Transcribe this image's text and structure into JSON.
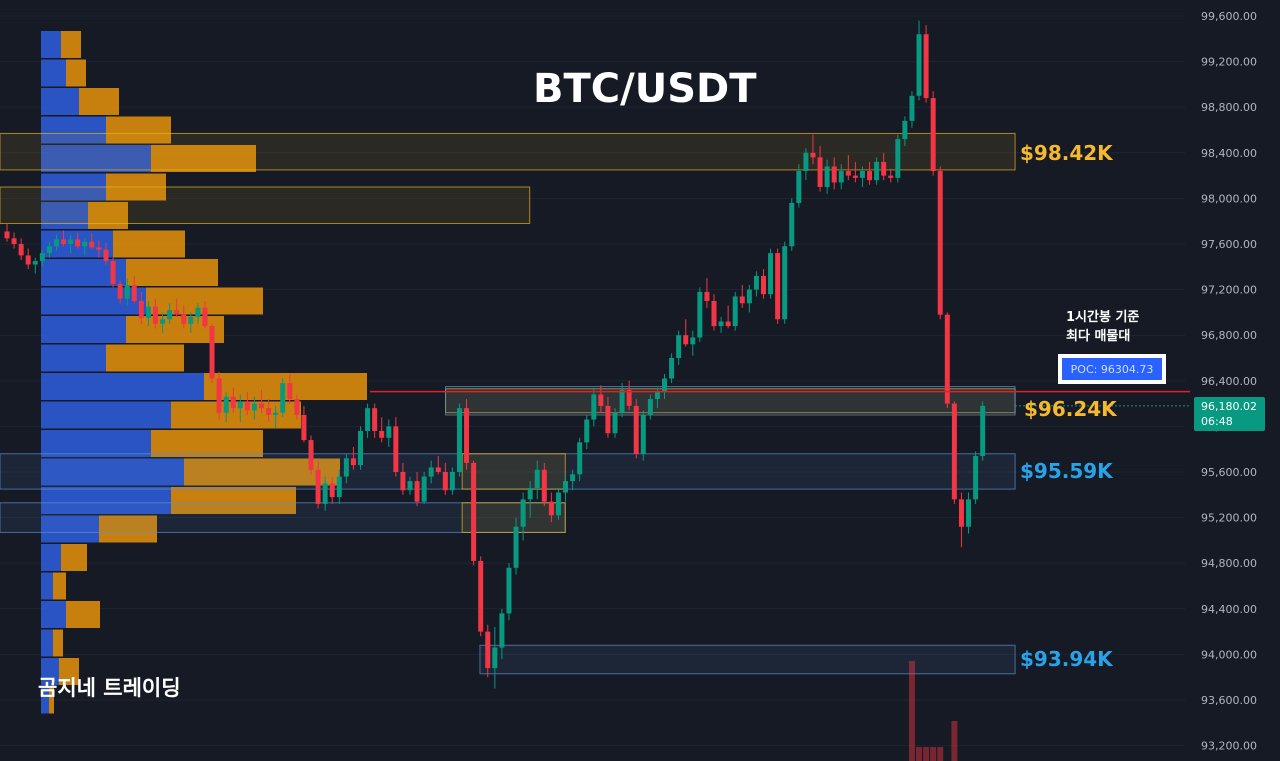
{
  "chart": {
    "title": "BTC/USDT",
    "watermark": "곰지네 트레이딩",
    "note_line1": "1시간봉 기준",
    "note_line2": "최다 매물대",
    "poc_label": "POC: 96304.73",
    "current_price": "96,180.02",
    "countdown": "06:48",
    "levels": [
      {
        "label": "$98.42K",
        "color": "#f5b82e"
      },
      {
        "label": "$96.24K",
        "color": "#f5b82e"
      },
      {
        "label": "$95.59K",
        "color": "#29a3e8"
      },
      {
        "label": "$93.94K",
        "color": "#29a3e8"
      }
    ]
  },
  "chart_data": {
    "type": "candlestick",
    "title": "BTC/USDT",
    "timeframe_note": "1시간봉 기준",
    "y_axis": {
      "ticks": [
        "99,600.00",
        "99,200.00",
        "98,800.00",
        "98,400.00",
        "98,000.00",
        "97,600.00",
        "97,200.00",
        "96,800.00",
        "96,400.00",
        "96,000.00",
        "95,600.00",
        "95,200.00",
        "94,800.00",
        "94,400.00",
        "94,000.00",
        "93,600.00",
        "93,200.00"
      ],
      "ylim": [
        93000,
        99850
      ]
    },
    "poc": 96304.73,
    "current_price": 96180.02,
    "level_lines": [
      98420,
      96240,
      95590,
      93940
    ],
    "zones": [
      {
        "name": "zone-98k-upper",
        "low": 98250,
        "high": 98570,
        "x_start": 0,
        "x_end": 0.795,
        "color": "#e6b422"
      },
      {
        "name": "zone-98k-lower",
        "low": 97780,
        "high": 98100,
        "x_start": 0,
        "x_end": 0.447,
        "color": "#e6b422"
      },
      {
        "name": "zone-96k-poc",
        "low": 96120,
        "high": 96330,
        "x_start": 0.376,
        "x_end": 0.795,
        "color": "#e6b422"
      },
      {
        "name": "zone-96k-blue",
        "low": 96100,
        "high": 96350,
        "x_start": 0.376,
        "x_end": 0.795,
        "color": "#5b8fd0"
      },
      {
        "name": "zone-95k-blue-a",
        "low": 95450,
        "high": 95760,
        "x_start": 0,
        "x_end": 0.795,
        "color": "#5b8fd0"
      },
      {
        "name": "zone-95k-blue-b",
        "low": 95070,
        "high": 95330,
        "x_start": 0,
        "x_end": 0.477,
        "color": "#5b8fd0"
      },
      {
        "name": "zone-95k-yellow",
        "low": 95450,
        "high": 95760,
        "x_start": 0.39,
        "x_end": 0.477,
        "color": "#e6b422"
      },
      {
        "name": "zone-95k-yellow-b",
        "low": 95070,
        "high": 95330,
        "x_start": 0.39,
        "x_end": 0.477,
        "color": "#e6b422"
      },
      {
        "name": "zone-93k-blue",
        "low": 93830,
        "high": 94080,
        "x_start": 0.405,
        "x_end": 0.795,
        "color": "#5b8fd0"
      }
    ],
    "volume_profile": [
      {
        "price": 99350,
        "up": 20,
        "down": 20
      },
      {
        "price": 99100,
        "up": 25,
        "down": 20
      },
      {
        "price": 98850,
        "up": 38,
        "down": 40
      },
      {
        "price": 98600,
        "up": 65,
        "down": 65
      },
      {
        "price": 98350,
        "up": 110,
        "down": 105
      },
      {
        "price": 98100,
        "up": 65,
        "down": 60
      },
      {
        "price": 97850,
        "up": 47,
        "down": 40
      },
      {
        "price": 97600,
        "up": 72,
        "down": 72
      },
      {
        "price": 97350,
        "up": 85,
        "down": 92
      },
      {
        "price": 97100,
        "up": 105,
        "down": 117
      },
      {
        "price": 96850,
        "up": 85,
        "down": 98
      },
      {
        "price": 96600,
        "up": 65,
        "down": 78
      },
      {
        "price": 96350,
        "up": 163,
        "down": 163
      },
      {
        "price": 96100,
        "up": 130,
        "down": 130
      },
      {
        "price": 95850,
        "up": 110,
        "down": 112
      },
      {
        "price": 95600,
        "up": 143,
        "down": 156
      },
      {
        "price": 95350,
        "up": 130,
        "down": 125
      },
      {
        "price": 95100,
        "up": 58,
        "down": 58
      },
      {
        "price": 94850,
        "up": 20,
        "down": 26
      },
      {
        "price": 94600,
        "up": 12,
        "down": 13
      },
      {
        "price": 94350,
        "up": 25,
        "down": 34
      },
      {
        "price": 94100,
        "up": 12,
        "down": 10
      },
      {
        "price": 93850,
        "up": 18,
        "down": 20
      },
      {
        "price": 93600,
        "up": 8,
        "down": 5
      }
    ],
    "candles": [
      [
        97710,
        97780,
        97620,
        97650
      ],
      [
        97650,
        97700,
        97560,
        97600
      ],
      [
        97600,
        97650,
        97460,
        97500
      ],
      [
        97500,
        97560,
        97380,
        97420
      ],
      [
        97420,
        97480,
        97340,
        97450
      ],
      [
        97450,
        97550,
        97400,
        97520
      ],
      [
        97520,
        97620,
        97480,
        97580
      ],
      [
        97580,
        97680,
        97540,
        97640
      ],
      [
        97640,
        97720,
        97580,
        97600
      ],
      [
        97600,
        97680,
        97520,
        97640
      ],
      [
        97640,
        97700,
        97560,
        97580
      ],
      [
        97580,
        97650,
        97500,
        97620
      ],
      [
        97620,
        97690,
        97560,
        97570
      ],
      [
        97570,
        97630,
        97480,
        97550
      ],
      [
        97550,
        97610,
        97420,
        97450
      ],
      [
        97450,
        97480,
        97220,
        97250
      ],
      [
        97250,
        97280,
        97080,
        97120
      ],
      [
        97120,
        97300,
        97060,
        97240
      ],
      [
        97240,
        97320,
        97080,
        97100
      ],
      [
        97100,
        97180,
        96900,
        96950
      ],
      [
        96950,
        97100,
        96880,
        97050
      ],
      [
        97050,
        97120,
        96860,
        96900
      ],
      [
        96900,
        97000,
        96820,
        96940
      ],
      [
        96940,
        97080,
        96900,
        97020
      ],
      [
        97020,
        97120,
        96960,
        96980
      ],
      [
        96980,
        97060,
        96860,
        96900
      ],
      [
        96900,
        97000,
        96820,
        96960
      ],
      [
        96960,
        97080,
        96900,
        97040
      ],
      [
        97040,
        97100,
        96860,
        96880
      ],
      [
        96880,
        96900,
        96380,
        96420
      ],
      [
        96420,
        96480,
        96060,
        96120
      ],
      [
        96120,
        96300,
        96040,
        96260
      ],
      [
        96260,
        96340,
        96120,
        96160
      ],
      [
        96160,
        96280,
        96040,
        96220
      ],
      [
        96220,
        96300,
        96100,
        96140
      ],
      [
        96140,
        96260,
        96060,
        96200
      ],
      [
        96200,
        96320,
        96120,
        96160
      ],
      [
        96160,
        96240,
        96040,
        96100
      ],
      [
        96100,
        96180,
        95980,
        96120
      ],
      [
        96120,
        96420,
        96080,
        96380
      ],
      [
        96380,
        96460,
        96200,
        96240
      ],
      [
        96240,
        96280,
        96060,
        96100
      ],
      [
        96100,
        96180,
        95860,
        95880
      ],
      [
        95880,
        95920,
        95580,
        95620
      ],
      [
        95620,
        95700,
        95280,
        95320
      ],
      [
        95320,
        95560,
        95260,
        95500
      ],
      [
        95500,
        95560,
        95320,
        95380
      ],
      [
        95380,
        95620,
        95320,
        95560
      ],
      [
        95560,
        95760,
        95500,
        95720
      ],
      [
        95720,
        95820,
        95620,
        95660
      ],
      [
        95660,
        96000,
        95620,
        95960
      ],
      [
        95960,
        96200,
        95900,
        96160
      ],
      [
        96160,
        96200,
        95900,
        95960
      ],
      [
        95960,
        96080,
        95860,
        95900
      ],
      [
        95900,
        96060,
        95820,
        96000
      ],
      [
        96000,
        96080,
        95560,
        95600
      ],
      [
        95600,
        95680,
        95400,
        95440
      ],
      [
        95440,
        95560,
        95400,
        95520
      ],
      [
        95520,
        95600,
        95300,
        95340
      ],
      [
        95340,
        95600,
        95320,
        95560
      ],
      [
        95560,
        95700,
        95500,
        95640
      ],
      [
        95640,
        95740,
        95580,
        95600
      ],
      [
        95600,
        95680,
        95400,
        95440
      ],
      [
        95440,
        95640,
        95400,
        95600
      ],
      [
        95600,
        96200,
        95560,
        96160
      ],
      [
        96160,
        96240,
        95620,
        95680
      ],
      [
        95680,
        95700,
        94780,
        94820
      ],
      [
        94820,
        94860,
        94160,
        94200
      ],
      [
        94200,
        94260,
        93800,
        93880
      ],
      [
        93880,
        94240,
        93700,
        94060
      ],
      [
        94060,
        94400,
        93960,
        94360
      ],
      [
        94360,
        94800,
        94300,
        94760
      ],
      [
        94760,
        95200,
        94700,
        95120
      ],
      [
        95120,
        95420,
        95000,
        95360
      ],
      [
        95360,
        95520,
        95200,
        95460
      ],
      [
        95460,
        95700,
        95360,
        95620
      ],
      [
        95620,
        95680,
        95300,
        95340
      ],
      [
        95340,
        95420,
        95160,
        95220
      ],
      [
        95220,
        95460,
        95180,
        95420
      ],
      [
        95420,
        95580,
        95340,
        95520
      ],
      [
        95520,
        95620,
        95440,
        95580
      ],
      [
        95580,
        95900,
        95520,
        95860
      ],
      [
        95860,
        96100,
        95800,
        96060
      ],
      [
        96060,
        96340,
        96000,
        96280
      ],
      [
        96280,
        96360,
        96120,
        96180
      ],
      [
        96180,
        96260,
        95900,
        95940
      ],
      [
        95940,
        96160,
        95900,
        96120
      ],
      [
        96120,
        96380,
        96080,
        96320
      ],
      [
        96320,
        96400,
        96140,
        96180
      ],
      [
        96180,
        96240,
        95720,
        95760
      ],
      [
        95760,
        96140,
        95700,
        96100
      ],
      [
        96100,
        96280,
        96060,
        96240
      ],
      [
        96240,
        96340,
        96160,
        96300
      ],
      [
        96300,
        96460,
        96240,
        96420
      ],
      [
        96420,
        96640,
        96380,
        96600
      ],
      [
        96600,
        96840,
        96540,
        96800
      ],
      [
        96800,
        96940,
        96700,
        96720
      ],
      [
        96720,
        96840,
        96620,
        96780
      ],
      [
        96780,
        97220,
        96740,
        97180
      ],
      [
        97180,
        97300,
        97040,
        97100
      ],
      [
        97100,
        97160,
        96840,
        96880
      ],
      [
        96880,
        96960,
        96820,
        96920
      ],
      [
        96920,
        97060,
        96860,
        96880
      ],
      [
        96880,
        97180,
        96840,
        97140
      ],
      [
        97140,
        97240,
        97040,
        97080
      ],
      [
        97080,
        97240,
        97000,
        97200
      ],
      [
        97200,
        97360,
        97140,
        97320
      ],
      [
        97320,
        97380,
        97120,
        97160
      ],
      [
        97160,
        97560,
        97120,
        97520
      ],
      [
        97520,
        97560,
        96900,
        96940
      ],
      [
        96940,
        97620,
        96900,
        97580
      ],
      [
        97580,
        98000,
        97540,
        97960
      ],
      [
        97960,
        98300,
        97920,
        98240
      ],
      [
        98240,
        98440,
        98160,
        98400
      ],
      [
        98400,
        98560,
        98300,
        98360
      ],
      [
        98360,
        98460,
        98060,
        98100
      ],
      [
        98100,
        98340,
        98040,
        98280
      ],
      [
        98280,
        98360,
        98080,
        98140
      ],
      [
        98140,
        98300,
        98080,
        98240
      ],
      [
        98240,
        98380,
        98160,
        98200
      ],
      [
        98200,
        98320,
        98140,
        98180
      ],
      [
        98180,
        98280,
        98100,
        98240
      ],
      [
        98240,
        98320,
        98120,
        98160
      ],
      [
        98160,
        98360,
        98120,
        98320
      ],
      [
        98320,
        98400,
        98160,
        98200
      ],
      [
        98200,
        98260,
        98140,
        98180
      ],
      [
        98180,
        98560,
        98140,
        98520
      ],
      [
        98520,
        98720,
        98460,
        98680
      ],
      [
        98680,
        98940,
        98620,
        98900
      ],
      [
        98900,
        99560,
        98860,
        99440
      ],
      [
        99440,
        99520,
        98840,
        98880
      ],
      [
        98880,
        98940,
        98200,
        98240
      ],
      [
        98240,
        98280,
        96940,
        96980
      ],
      [
        96980,
        97000,
        96160,
        96200
      ],
      [
        96200,
        96220,
        95320,
        95360
      ],
      [
        95360,
        95420,
        94940,
        95120
      ],
      [
        95120,
        95420,
        95060,
        95360
      ],
      [
        95360,
        95780,
        95320,
        95740
      ],
      [
        95740,
        96220,
        95700,
        96180
      ]
    ],
    "volume_bars": [
      {
        "index": 128,
        "value": 100,
        "color": "#f23645"
      },
      {
        "index": 129,
        "value": 14,
        "color": "#f23645"
      },
      {
        "index": 130,
        "value": 14,
        "color": "#f23645"
      },
      {
        "index": 131,
        "value": 14,
        "color": "#f23645"
      },
      {
        "index": 132,
        "value": 14,
        "color": "#f23645"
      },
      {
        "index": 134,
        "value": 40,
        "color": "#f23645"
      }
    ]
  }
}
